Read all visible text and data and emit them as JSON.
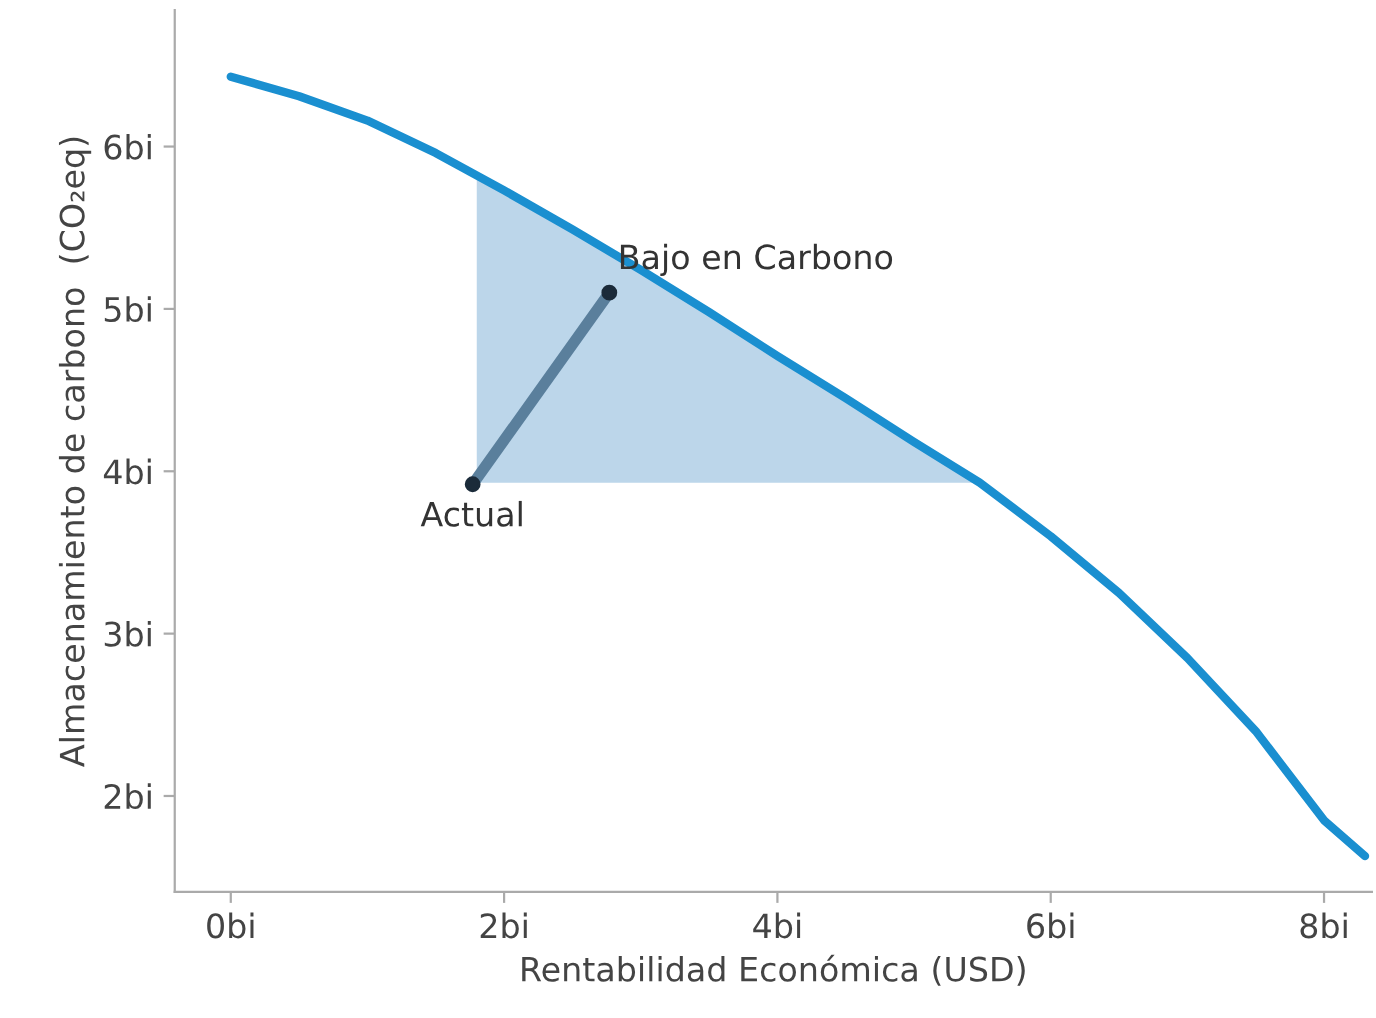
{
  "chart_data": {
    "type": "line",
    "xlabel": "Rentabilidad Económica (USD)",
    "ylabel": "Almacenamiento de carbono  (CO₂eq)",
    "xlim": [
      -0.41,
      8.35
    ],
    "ylim": [
      1.41,
      6.84
    ],
    "xticks": [
      {
        "value": 0,
        "label": "0bi"
      },
      {
        "value": 2,
        "label": "2bi"
      },
      {
        "value": 4,
        "label": "4bi"
      },
      {
        "value": 6,
        "label": "6bi"
      },
      {
        "value": 8,
        "label": "8bi"
      }
    ],
    "yticks": [
      {
        "value": 2,
        "label": "2bi"
      },
      {
        "value": 3,
        "label": "3bi"
      },
      {
        "value": 4,
        "label": "4bi"
      },
      {
        "value": 5,
        "label": "5bi"
      },
      {
        "value": 6,
        "label": "6bi"
      }
    ],
    "grid": false,
    "legend": false,
    "series": [
      {
        "type": "area",
        "color": "#bcd6ea",
        "x": [
          1.8,
          1.8,
          2,
          3,
          4,
          5,
          5.48
        ],
        "values": [
          3.93,
          5.83,
          5.73,
          5.24,
          4.71,
          4.18,
          3.93
        ]
      },
      {
        "color": "#1a8fd0",
        "marker": "none",
        "x": [
          0,
          0.5,
          1,
          1.5,
          2,
          2.5,
          3,
          3.5,
          4,
          4.5,
          5,
          5.48,
          6,
          6.5,
          7,
          7.5,
          8,
          8.3
        ],
        "values": [
          6.43,
          6.31,
          6.16,
          5.96,
          5.73,
          5.49,
          5.24,
          4.98,
          4.71,
          4.45,
          4.18,
          3.93,
          3.6,
          3.25,
          2.85,
          2.4,
          1.85,
          1.63
        ]
      },
      {
        "type": "line",
        "color": "#5a7f9c",
        "marker": "none",
        "x": [
          1.77,
          2.77
        ],
        "values": [
          3.92,
          5.1
        ]
      },
      {
        "type": "scatter",
        "color": "#1b2b3a",
        "marker": "circle",
        "x": [
          1.77,
          2.77
        ],
        "values": [
          3.92,
          5.1
        ]
      }
    ],
    "annotations": [
      {
        "text": "Actual",
        "x": 1.77,
        "y": 3.92
      },
      {
        "text": "Bajo en Carbono",
        "x": 2.77,
        "y": 5.1
      }
    ]
  }
}
